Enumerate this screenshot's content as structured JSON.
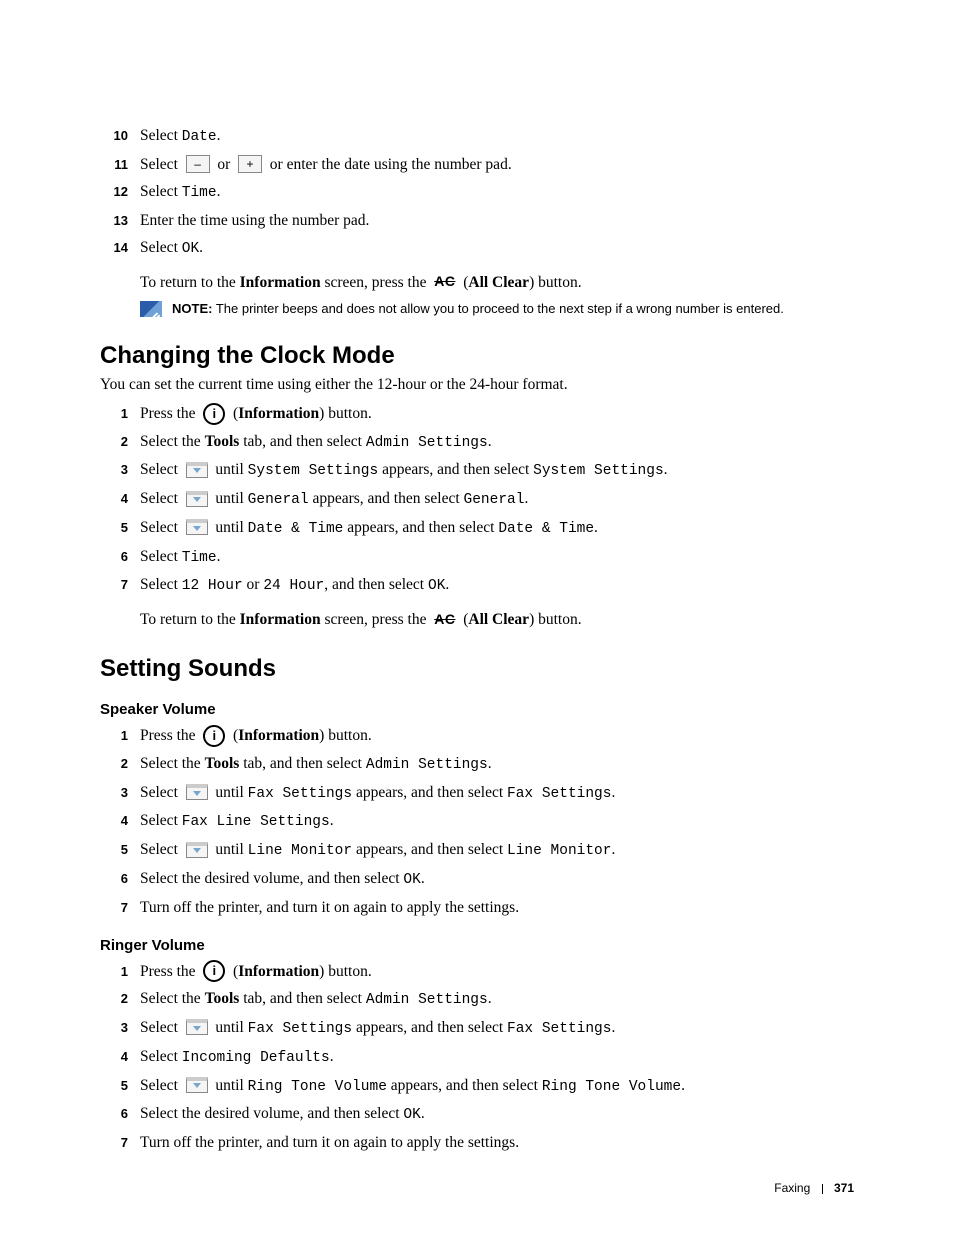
{
  "topList": {
    "start": 10,
    "items": [
      {
        "n": "10",
        "html": "Select <span class='mono'>Date</span>."
      },
      {
        "n": "11",
        "html": "Select &nbsp;<span class='keybox'>–</span>&nbsp; or &nbsp;<span class='keybox'>+</span>&nbsp; or enter the date using the number pad."
      },
      {
        "n": "12",
        "html": "Select <span class='mono'>Time</span>."
      },
      {
        "n": "13",
        "html": "Enter the time using the number pad."
      },
      {
        "n": "14",
        "html": "Select <span class='mono'>OK</span>."
      }
    ],
    "cont": "To return to the <span class='bold'>Information</span> screen, press the &nbsp;<span class='ac-btn'>AC</span>&nbsp; (<span class='bold'>All Clear</span>) button.",
    "note": {
      "label": "NOTE:",
      "text": " The printer beeps and does not allow you to proceed to the next step if a wrong number is entered."
    }
  },
  "sectionClock": {
    "title": "Changing the Clock Mode",
    "lead": "You can set the current time using either the 12-hour or the 24-hour format.",
    "items": [
      {
        "n": "1",
        "html": "Press the &nbsp;<span class='info-btn'>i</span>&nbsp; (<span class='bold'>Information</span>) button."
      },
      {
        "n": "2",
        "html": "Select the <span class='bold'>Tools</span> tab, and then select <span class='mono'>Admin Settings</span>."
      },
      {
        "n": "3",
        "html": "Select &nbsp;<span class='downkey'></span>&nbsp; until <span class='mono'>System Settings</span> appears, and then select <span class='mono'>System Settings</span>."
      },
      {
        "n": "4",
        "html": "Select &nbsp;<span class='downkey'></span>&nbsp; until <span class='mono'>General</span> appears, and then select <span class='mono'>General</span>."
      },
      {
        "n": "5",
        "html": "Select &nbsp;<span class='downkey'></span>&nbsp; until <span class='mono'>Date &amp; Time</span> appears, and then select <span class='mono'>Date &amp; Time</span>."
      },
      {
        "n": "6",
        "html": "Select <span class='mono'>Time</span>."
      },
      {
        "n": "7",
        "html": "Select <span class='mono'>12 Hour</span> or <span class='mono'>24 Hour</span>, and then select <span class='mono'>OK</span>."
      }
    ],
    "cont": "To return to the <span class='bold'>Information</span> screen, press the &nbsp;<span class='ac-btn'>AC</span>&nbsp; (<span class='bold'>All Clear</span>) button."
  },
  "sectionSounds": {
    "title": "Setting Sounds",
    "speaker": {
      "title": "Speaker Volume",
      "items": [
        {
          "n": "1",
          "html": "Press the &nbsp;<span class='info-btn'>i</span>&nbsp; (<span class='bold'>Information</span>) button."
        },
        {
          "n": "2",
          "html": "Select the <span class='bold'>Tools</span> tab, and then select <span class='mono'>Admin Settings</span>."
        },
        {
          "n": "3",
          "html": "Select &nbsp;<span class='downkey'></span>&nbsp; until <span class='mono'>Fax Settings</span> appears, and then select <span class='mono'>Fax Settings</span>."
        },
        {
          "n": "4",
          "html": "Select <span class='mono'>Fax Line Settings</span>."
        },
        {
          "n": "5",
          "html": "Select &nbsp;<span class='downkey'></span>&nbsp; until <span class='mono'>Line Monitor</span> appears, and then select <span class='mono'>Line Monitor</span>."
        },
        {
          "n": "6",
          "html": "Select the desired volume, and then select <span class='mono'>OK</span>."
        },
        {
          "n": "7",
          "html": "Turn off the printer, and turn it on again to apply the settings."
        }
      ]
    },
    "ringer": {
      "title": "Ringer Volume",
      "items": [
        {
          "n": "1",
          "html": "Press the &nbsp;<span class='info-btn'>i</span>&nbsp; (<span class='bold'>Information</span>) button."
        },
        {
          "n": "2",
          "html": "Select the <span class='bold'>Tools</span> tab, and then select <span class='mono'>Admin Settings</span>."
        },
        {
          "n": "3",
          "html": "Select &nbsp;<span class='downkey'></span>&nbsp; until <span class='mono'>Fax Settings</span> appears, and then select <span class='mono'>Fax Settings</span>."
        },
        {
          "n": "4",
          "html": "Select <span class='mono'>Incoming Defaults</span>."
        },
        {
          "n": "5",
          "html": "Select &nbsp;<span class='downkey'></span>&nbsp; until <span class='mono'>Ring Tone Volume</span> appears, and then select <span class='mono'>Ring Tone Volume</span>."
        },
        {
          "n": "6",
          "html": "Select the desired volume, and then select <span class='mono'>OK</span>."
        },
        {
          "n": "7",
          "html": "Turn off the printer, and turn it on again to apply the settings."
        }
      ]
    }
  },
  "footer": {
    "chapter": "Faxing",
    "page": "371"
  }
}
